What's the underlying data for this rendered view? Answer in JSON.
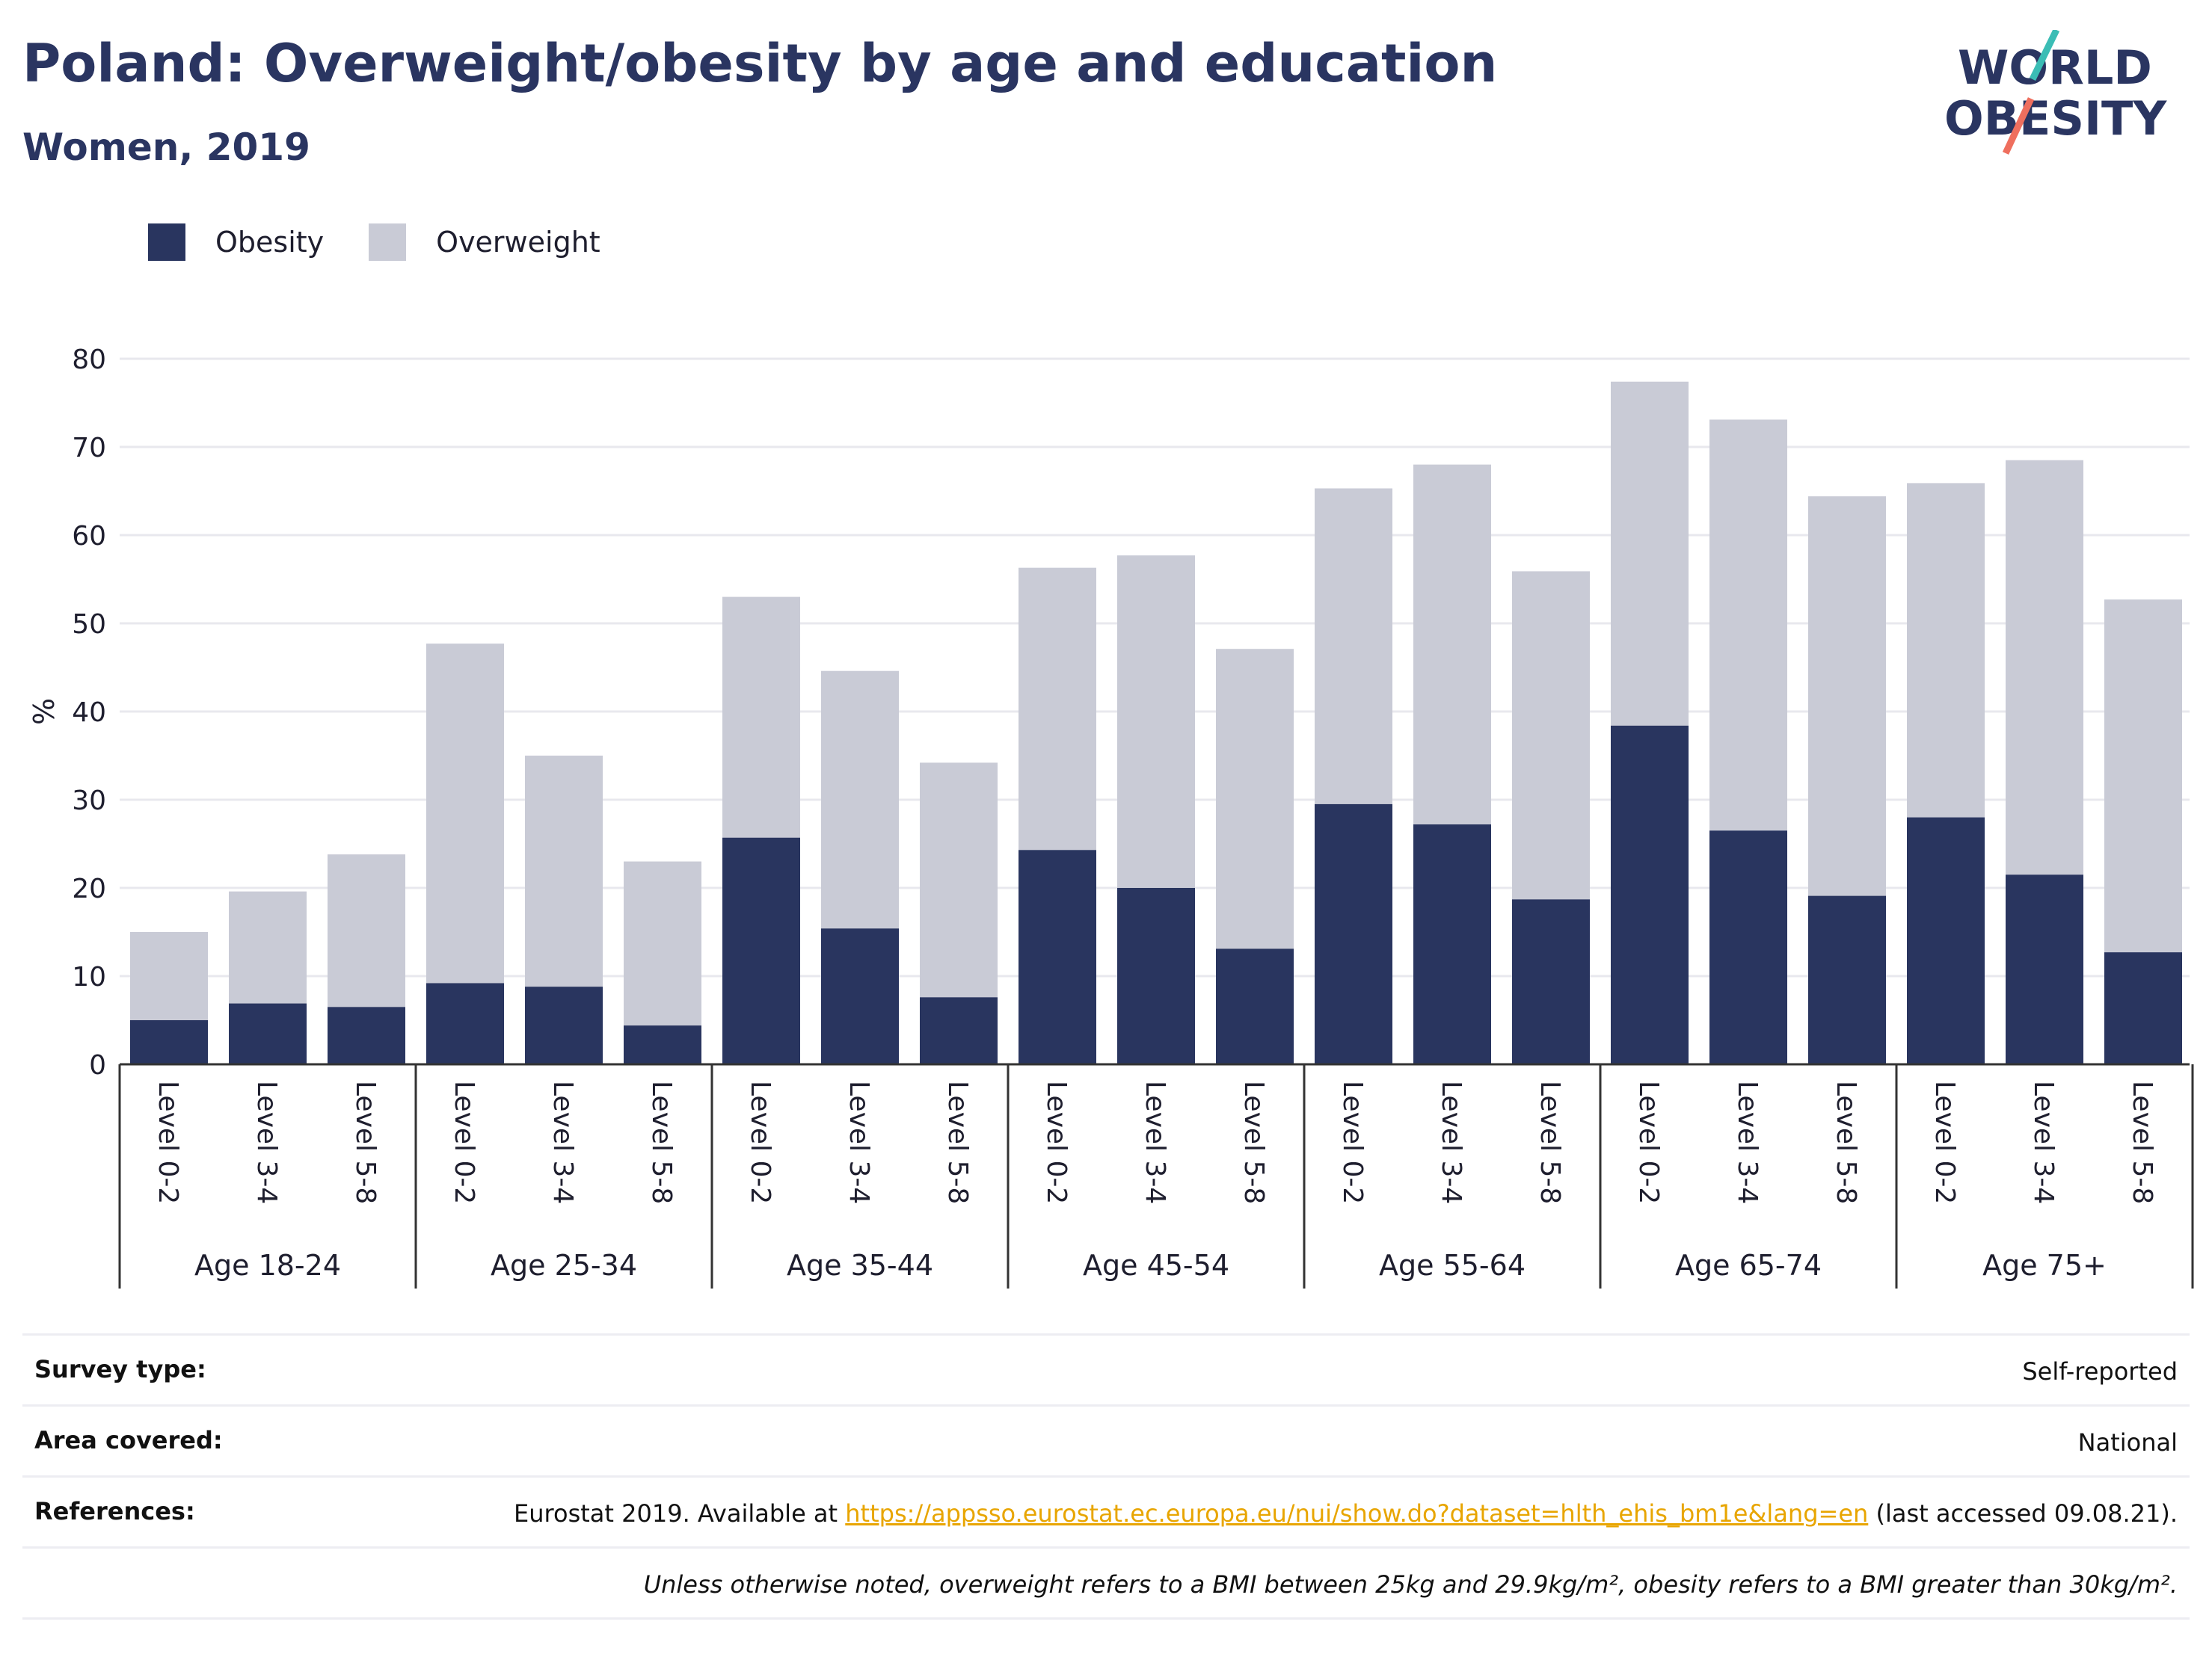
{
  "header": {
    "title": "Poland: Overweight/obesity by age and education",
    "subtitle": "Women, 2019"
  },
  "logo": {
    "line1": "WORLD",
    "line2": "OBESITY"
  },
  "colors": {
    "obesity": "#29355f",
    "overweight": "#c9cbd6",
    "grid": "#e8e8ee",
    "axis": "#333333",
    "link": "#e8a500",
    "logo_teal": "#3bbdb5",
    "logo_coral": "#ef6f5e"
  },
  "legend": [
    {
      "label": "Obesity",
      "color": "#29355f"
    },
    {
      "label": "Overweight",
      "color": "#c9cbd6"
    }
  ],
  "chart_data": {
    "type": "bar",
    "stacked": true,
    "ylabel": "%",
    "ylim": [
      0,
      80
    ],
    "yticks": [
      0,
      10,
      20,
      30,
      40,
      50,
      60,
      70,
      80
    ],
    "grid": true,
    "legend_position": "top-left",
    "groups": [
      "Age 18-24",
      "Age 25-34",
      "Age 35-44",
      "Age 45-54",
      "Age 55-64",
      "Age 65-74",
      "Age 75+"
    ],
    "subcategories": [
      "Level 0-2",
      "Level 3-4",
      "Level 5-8"
    ],
    "series": [
      {
        "name": "Obesity",
        "values": [
          5.0,
          6.9,
          6.5,
          9.2,
          8.8,
          4.4,
          25.7,
          15.4,
          7.6,
          24.3,
          20.0,
          13.1,
          29.5,
          27.2,
          18.7,
          38.4,
          26.5,
          19.1,
          28.0,
          21.5,
          12.7
        ]
      },
      {
        "name": "Overweight",
        "values": [
          10.0,
          12.7,
          17.3,
          38.5,
          26.2,
          18.6,
          27.3,
          29.2,
          26.6,
          32.0,
          37.7,
          34.0,
          35.8,
          40.8,
          37.2,
          39.0,
          46.6,
          45.3,
          37.9,
          47.0,
          40.0
        ]
      }
    ]
  },
  "info": {
    "survey_label": "Survey type:",
    "survey_value": "Self-reported",
    "area_label": "Area covered:",
    "area_value": "National",
    "references_label": "References:",
    "references_prefix": "Eurostat 2019. Available at ",
    "references_link": "https://appsso.eurostat.ec.europa.eu/nui/show.do?dataset=hlth_ehis_bm1e&lang=en",
    "references_suffix": " (last accessed 09.08.21).",
    "note": "Unless otherwise noted, overweight refers to a BMI between 25kg and 29.9kg/m², obesity refers to a BMI greater than 30kg/m²."
  }
}
